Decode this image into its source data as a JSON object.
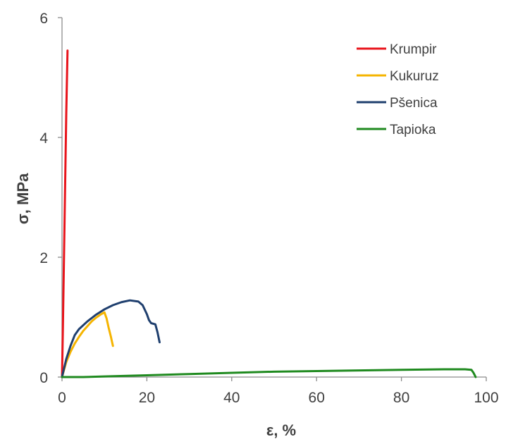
{
  "chart_data": {
    "type": "line",
    "xlabel": "ε, %",
    "ylabel": "σ, MPa",
    "xlim": [
      0,
      100
    ],
    "ylim": [
      0,
      6
    ],
    "x_ticks": [
      "0",
      "20",
      "40",
      "60",
      "80",
      "100"
    ],
    "y_ticks": [
      "0",
      "2",
      "4",
      "6"
    ],
    "grid": false,
    "legend_position": "top-right",
    "series": [
      {
        "name": "Krumpir",
        "color": "#e8141b",
        "x": [
          0,
          0.2,
          0.4,
          0.6,
          0.8,
          1.0,
          1.2,
          1.3
        ],
        "y": [
          0.0,
          0.8,
          1.7,
          2.6,
          3.5,
          4.4,
          5.1,
          5.45
        ]
      },
      {
        "name": "Kukuruz",
        "color": "#f5b400",
        "x": [
          0,
          1,
          2,
          3,
          4,
          5,
          6,
          7,
          8,
          9,
          10,
          10.5,
          11,
          11.5,
          12
        ],
        "y": [
          0.0,
          0.25,
          0.42,
          0.56,
          0.67,
          0.77,
          0.85,
          0.93,
          0.99,
          1.04,
          1.08,
          0.98,
          0.82,
          0.68,
          0.52
        ]
      },
      {
        "name": "Pšenica",
        "color": "#1f3f6e",
        "x": [
          0,
          1,
          2,
          3,
          4,
          6,
          8,
          10,
          12,
          14,
          16,
          18,
          19,
          20,
          20.5,
          21,
          22,
          22.5,
          23
        ],
        "y": [
          0.0,
          0.3,
          0.52,
          0.7,
          0.8,
          0.93,
          1.04,
          1.13,
          1.2,
          1.25,
          1.28,
          1.26,
          1.2,
          1.05,
          0.95,
          0.9,
          0.88,
          0.75,
          0.58
        ]
      },
      {
        "name": "Tapioka",
        "color": "#1f8a1f",
        "x": [
          0,
          5,
          10,
          20,
          30,
          40,
          50,
          60,
          70,
          80,
          90,
          95,
          96.5,
          97,
          97.5
        ],
        "y": [
          0.0,
          0.0,
          0.01,
          0.03,
          0.05,
          0.07,
          0.09,
          0.1,
          0.11,
          0.12,
          0.13,
          0.13,
          0.12,
          0.07,
          0.0
        ]
      }
    ]
  }
}
